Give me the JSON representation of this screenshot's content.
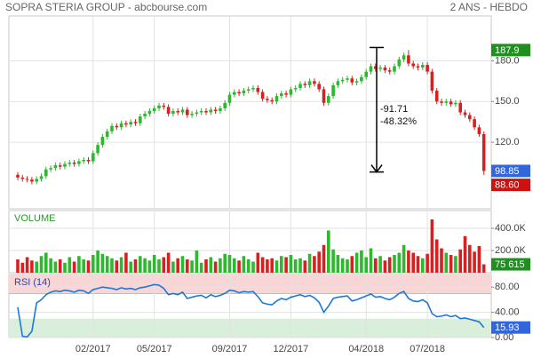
{
  "chart_data": [
    {
      "type": "candlestick",
      "title": "SOPRA STERIA GROUP - abcbourse.com",
      "subtitle": "2 ANS - HEBDO",
      "categories": [
        null,
        null,
        null,
        null,
        null,
        null,
        null,
        null,
        null,
        null,
        null,
        null,
        null,
        null,
        null,
        null,
        "02/2017",
        null,
        null,
        null,
        null,
        null,
        null,
        null,
        null,
        null,
        null,
        null,
        null,
        "05/2017",
        null,
        null,
        null,
        null,
        null,
        null,
        null,
        null,
        null,
        null,
        null,
        null,
        null,
        null,
        null,
        "09/2017",
        null,
        null,
        null,
        null,
        null,
        null,
        null,
        null,
        null,
        null,
        null,
        null,
        "12/2017",
        null,
        null,
        null,
        null,
        null,
        null,
        null,
        null,
        null,
        null,
        null,
        null,
        null,
        null,
        null,
        "04/2018",
        null,
        null,
        null,
        null,
        null,
        null,
        null,
        null,
        null,
        null,
        null,
        null,
        "07/2018",
        null,
        null,
        null,
        null,
        null,
        null,
        null,
        null,
        null,
        null,
        null,
        null
      ],
      "open": [
        96,
        94,
        93,
        92.5,
        91,
        93,
        95,
        100,
        101,
        103,
        102,
        104,
        105,
        104,
        106,
        107,
        106,
        112,
        118,
        124,
        128,
        132,
        131,
        134,
        133,
        135,
        134,
        139,
        141,
        143,
        145,
        147,
        146,
        141,
        143,
        142,
        144,
        140,
        141,
        142,
        143,
        142,
        144,
        143,
        145,
        149,
        155,
        157,
        156,
        158,
        159,
        160,
        157,
        152,
        151,
        150,
        154,
        156,
        155,
        159,
        160,
        163,
        162,
        165,
        163,
        159,
        149,
        154,
        162,
        165,
        166,
        167,
        164,
        165,
        168,
        172,
        176,
        174,
        175,
        173,
        172,
        176,
        181,
        184,
        178,
        176,
        175,
        177,
        172,
        158,
        150,
        149,
        150,
        148,
        149,
        142,
        140,
        137,
        131,
        126
      ],
      "high": [
        98,
        96,
        95,
        94.5,
        95,
        97,
        102,
        103,
        105,
        105,
        106,
        107,
        107,
        108,
        109,
        109,
        114,
        120,
        126,
        130,
        134,
        134,
        136,
        136,
        137,
        137,
        141,
        143,
        145,
        147,
        149,
        149,
        148,
        145,
        145,
        146,
        146,
        143,
        144,
        145,
        145,
        146,
        146,
        147,
        151,
        157,
        159,
        159,
        160,
        161,
        162,
        162,
        159,
        154,
        153,
        156,
        158,
        158,
        161,
        162,
        165,
        165,
        167,
        167,
        165,
        161,
        156,
        164,
        167,
        168,
        169,
        169,
        167,
        170,
        174,
        178,
        178,
        177,
        177,
        175,
        178,
        183,
        186,
        187.9,
        180,
        178,
        179,
        179,
        174,
        160,
        152,
        152,
        152,
        151,
        151,
        144,
        142,
        139,
        133,
        128
      ],
      "low": [
        92,
        91,
        90.5,
        89,
        89,
        91,
        93,
        98,
        99,
        100,
        100,
        102,
        102,
        102,
        104,
        104,
        104,
        110,
        116,
        122,
        126,
        129,
        129,
        131,
        131,
        132,
        132,
        137,
        139,
        141,
        143,
        144,
        139,
        139,
        140,
        140,
        138,
        138,
        139,
        140,
        140,
        140,
        141,
        141,
        143,
        147,
        153,
        154,
        154,
        156,
        157,
        155,
        150,
        149,
        148,
        148,
        152,
        153,
        153,
        157,
        158,
        160,
        160,
        161,
        157,
        147,
        147,
        152,
        160,
        163,
        164,
        162,
        162,
        163,
        166,
        170,
        172,
        172,
        171,
        170,
        170,
        174,
        179,
        176,
        174,
        173,
        173,
        170,
        156,
        148,
        147,
        147,
        146,
        146,
        140,
        138,
        135,
        129,
        124,
        96
      ],
      "close": [
        94,
        93,
        92.5,
        91,
        93,
        95,
        100,
        101,
        103,
        102,
        104,
        105,
        104,
        106,
        107,
        106,
        112,
        118,
        124,
        128,
        132,
        131,
        134,
        133,
        135,
        134,
        139,
        141,
        143,
        145,
        147,
        146,
        141,
        143,
        142,
        144,
        140,
        141,
        142,
        143,
        142,
        144,
        143,
        145,
        149,
        155,
        157,
        156,
        158,
        159,
        160,
        157,
        152,
        151,
        150,
        154,
        156,
        155,
        159,
        160,
        163,
        162,
        165,
        163,
        159,
        149,
        154,
        162,
        165,
        166,
        167,
        164,
        165,
        168,
        172,
        176,
        174,
        175,
        173,
        172,
        176,
        181,
        184,
        178,
        176,
        175,
        177,
        172,
        158,
        150,
        149,
        150,
        148,
        149,
        142,
        140,
        137,
        131,
        126,
        98.85
      ],
      "up_color": "#2db82d",
      "down_color": "#d92020",
      "ylim": [
        71,
        213
      ],
      "yticks": [
        {
          "value": 180,
          "label": "180.0"
        },
        {
          "value": 150,
          "label": "150.0"
        },
        {
          "value": 120,
          "label": "120.0"
        }
      ],
      "grid": true,
      "price_labels": [
        {
          "value": 187.9,
          "label": "187.9",
          "color": "#1f8f1f"
        },
        {
          "value": 98.85,
          "label": "98.85",
          "color": "#3366dd"
        },
        {
          "value": 88.6,
          "label": "88.60",
          "color": "#cc1111"
        }
      ],
      "annotation": {
        "from": 189.8,
        "to": 98.09,
        "text": [
          "-91.71",
          "-48.32%"
        ]
      }
    },
    {
      "type": "bar",
      "title": "VOLUME",
      "title_color": "#2a9a2a",
      "values": [
        120000,
        90000,
        140000,
        110000,
        100000,
        150000,
        180000,
        130000,
        100000,
        120000,
        90000,
        140000,
        100000,
        150000,
        120000,
        110000,
        160000,
        200000,
        170000,
        150000,
        130000,
        110000,
        140000,
        180000,
        100000,
        120000,
        150000,
        130000,
        110000,
        160000,
        120000,
        140000,
        180000,
        100000,
        130000,
        150000,
        120000,
        110000,
        200000,
        90000,
        120000,
        140000,
        100000,
        130000,
        170000,
        160000,
        130000,
        110000,
        150000,
        120000,
        100000,
        180000,
        140000,
        120000,
        130000,
        110000,
        150000,
        140000,
        160000,
        120000,
        130000,
        110000,
        170000,
        150000,
        190000,
        250000,
        380000,
        210000,
        160000,
        130000,
        120000,
        150000,
        180000,
        200000,
        140000,
        220000,
        130000,
        150000,
        110000,
        140000,
        160000,
        180000,
        250000,
        200000,
        180000,
        150000,
        130000,
        170000,
        480000,
        300000,
        220000,
        180000,
        160000,
        150000,
        210000,
        330000,
        250000,
        190000,
        240000,
        75615
      ],
      "ylim": [
        0,
        560000
      ],
      "yticks": [
        {
          "value": 400000,
          "label": "400.0K"
        },
        {
          "value": 200000,
          "label": "200.0K"
        }
      ],
      "last_label": {
        "value": 75615,
        "label": "75 615",
        "color": "#1f8f1f"
      }
    },
    {
      "type": "line",
      "title": "RSI (14)",
      "title_color": "#3344aa",
      "color": "#1f78d6",
      "values": [
        48,
        2,
        1,
        10,
        55,
        60,
        68,
        72,
        74,
        73,
        75,
        74,
        72,
        75,
        74,
        70,
        76,
        78,
        80,
        79,
        78,
        76,
        79,
        77,
        78,
        76,
        79,
        80,
        82,
        84,
        83,
        78,
        68,
        70,
        68,
        72,
        62,
        64,
        66,
        67,
        63,
        68,
        65,
        67,
        70,
        75,
        74,
        71,
        73,
        72,
        73,
        65,
        55,
        53,
        52,
        58,
        62,
        60,
        64,
        66,
        68,
        65,
        67,
        63,
        56,
        40,
        50,
        62,
        64,
        65,
        66,
        58,
        60,
        63,
        66,
        69,
        64,
        65,
        62,
        60,
        64,
        70,
        73,
        62,
        58,
        57,
        60,
        55,
        38,
        33,
        34,
        36,
        33,
        35,
        30,
        31,
        29,
        27,
        25,
        15.93
      ],
      "ylim": [
        0,
        100
      ],
      "yticks": [
        {
          "value": 80,
          "label": "80.00"
        },
        {
          "value": 40,
          "label": "40.00"
        },
        {
          "value": 0,
          "label": "0.00"
        }
      ],
      "bands": [
        {
          "from": 70,
          "to": 100,
          "color": "#f9d6d6"
        },
        {
          "from": 0,
          "to": 30,
          "color": "#d9eedb"
        }
      ],
      "label_color": "#3366dd"
    }
  ]
}
